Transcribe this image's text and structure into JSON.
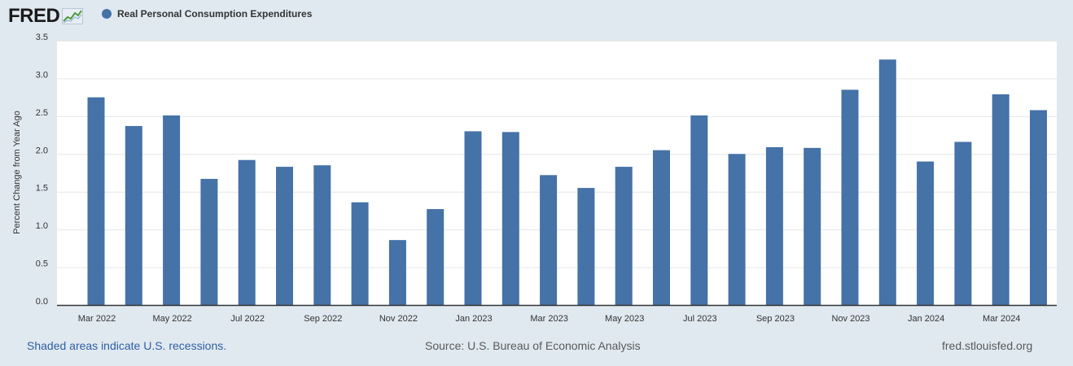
{
  "header": {
    "logo_text": "FRED",
    "logo_icon": "line-chart-icon"
  },
  "legend": {
    "label": "Real Personal Consumption Expenditures",
    "color": "#4572a7"
  },
  "footer": {
    "recession_note": "Shaded areas indicate U.S. recessions.",
    "source": "Source: U.S. Bureau of Economic Analysis",
    "site": "fred.stlouisfed.org"
  },
  "colors": {
    "background": "#e1e9f0",
    "plot_background": "#ffffff",
    "bar": "#4572a7",
    "grid": "#e6e6e6",
    "axis_text": "#333333"
  },
  "chart_data": {
    "type": "bar",
    "ylabel": "Percent Change from Year Ago",
    "ylim": [
      0,
      3.5
    ],
    "yticks": [
      "0.0",
      "0.5",
      "1.0",
      "1.5",
      "2.0",
      "2.5",
      "3.0",
      "3.5"
    ],
    "grid": true,
    "categories": [
      "Mar 2022",
      "Apr 2022",
      "May 2022",
      "Jun 2022",
      "Jul 2022",
      "Aug 2022",
      "Sep 2022",
      "Oct 2022",
      "Nov 2022",
      "Dec 2022",
      "Jan 2023",
      "Feb 2023",
      "Mar 2023",
      "Apr 2023",
      "May 2023",
      "Jun 2023",
      "Jul 2023",
      "Aug 2023",
      "Sep 2023",
      "Oct 2023",
      "Nov 2023",
      "Dec 2023",
      "Jan 2024",
      "Feb 2024",
      "Mar 2024",
      "Apr 2024"
    ],
    "values": [
      2.75,
      2.37,
      2.51,
      1.67,
      1.92,
      1.83,
      1.85,
      1.36,
      0.86,
      1.27,
      2.3,
      2.29,
      1.72,
      1.55,
      1.83,
      2.05,
      2.51,
      2.0,
      2.09,
      2.08,
      2.85,
      3.25,
      1.9,
      2.16,
      2.79,
      2.58
    ],
    "xtick_labels": [
      "Mar 2022",
      "May 2022",
      "Jul 2022",
      "Sep 2022",
      "Nov 2022",
      "Jan 2023",
      "Mar 2023",
      "May 2023",
      "Jul 2023",
      "Sep 2023",
      "Nov 2023",
      "Jan 2024",
      "Mar 2024"
    ]
  }
}
